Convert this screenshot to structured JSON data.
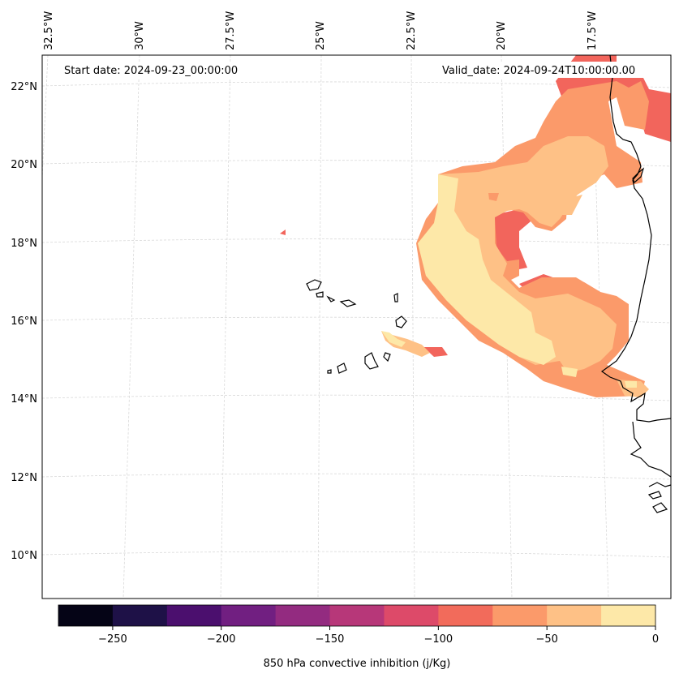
{
  "map": {
    "start_date": "Start date: 2024-09-23_00:00:00",
    "valid_date": "Valid_date: 2024-09-24T10:00:00.00",
    "lon_labels": [
      "32.5°W",
      "30°W",
      "27.5°W",
      "25°W",
      "22.5°W",
      "20°W",
      "17.5°W"
    ],
    "lat_labels": [
      "22°N",
      "20°N",
      "18°N",
      "16°N",
      "14°N",
      "12°N",
      "10°N"
    ]
  },
  "colorbar": {
    "label": "850 hPa convective inhibition (j/Kg)",
    "min": -275,
    "max": 0,
    "ticks": [
      "−250",
      "−200",
      "−150",
      "−100",
      "−50",
      "0"
    ],
    "tick_values": [
      -250,
      -200,
      -150,
      -100,
      -50,
      0
    ],
    "colors": [
      "#050416",
      "#1e1147",
      "#4b0f6e",
      "#711f81",
      "#932b80",
      "#b73779",
      "#dd4a69",
      "#f26b5b",
      "#fb9a6a",
      "#fec186",
      "#fde8a8"
    ]
  },
  "fields": {
    "band_red_color": "#f2655c",
    "band_orange_color": "#fb9a6a",
    "band_light_orange_color": "#fec186",
    "band_yellow_color": "#fde8a8"
  }
}
